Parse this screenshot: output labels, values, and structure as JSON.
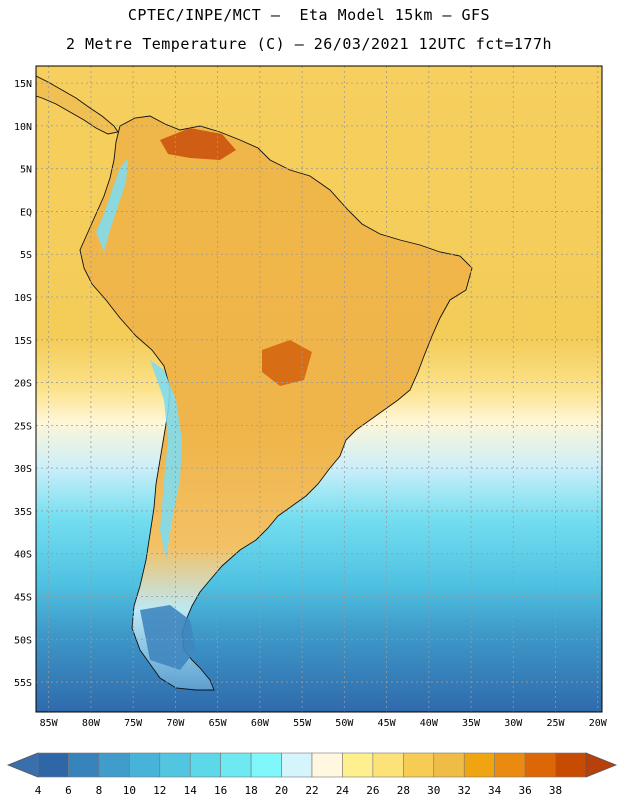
{
  "header": {
    "line1": "CPTEC/INPE/MCT –  Eta Model 15km – GFS",
    "line2": "2 Metre Temperature (C) – 26/03/2021 12UTC fct=177h"
  },
  "map": {
    "lat_labels": [
      "15N",
      "10N",
      "5N",
      "EQ",
      "5S",
      "10S",
      "15S",
      "20S",
      "25S",
      "30S",
      "35S",
      "40S",
      "45S",
      "50S",
      "55S"
    ],
    "lon_labels": [
      "85W",
      "80W",
      "75W",
      "70W",
      "65W",
      "60W",
      "55W",
      "50W",
      "45W",
      "40W",
      "35W",
      "30W",
      "25W",
      "20W"
    ],
    "lat_range": [
      17.0,
      -58.5
    ],
    "lon_range": [
      -86.5,
      -19.5
    ]
  },
  "colorbar": {
    "labels": [
      "4",
      "6",
      "8",
      "10",
      "12",
      "14",
      "16",
      "18",
      "20",
      "22",
      "24",
      "26",
      "28",
      "30",
      "32",
      "34",
      "36",
      "38"
    ],
    "low_color": "#3a6fae",
    "high_color": "#b8400a",
    "colors": [
      "#2e66a8",
      "#3784bc",
      "#3f9ccb",
      "#47b3d8",
      "#52c6e0",
      "#5cd8e8",
      "#6ee9f2",
      "#7ff7fb",
      "#d3f5fb",
      "#fff7e0",
      "#fff08f",
      "#fde27a",
      "#f6cc55",
      "#efbd45",
      "#f0a412",
      "#ea8a10",
      "#dd6606",
      "#c84b04"
    ]
  }
}
